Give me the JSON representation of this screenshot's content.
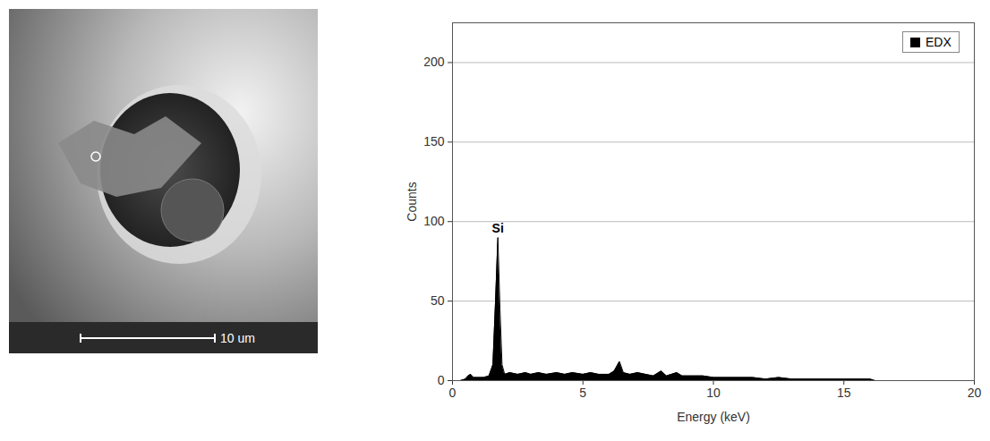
{
  "image": {
    "scale_bar": "10 um"
  },
  "chart_data": {
    "type": "area",
    "x_label": "Energy (keV)",
    "y_label": "Counts",
    "x": [
      0.0,
      0.3,
      0.5,
      0.6,
      0.7,
      0.8,
      0.9,
      1.0,
      1.2,
      1.4,
      1.55,
      1.65,
      1.74,
      1.82,
      1.9,
      2.0,
      2.2,
      2.5,
      2.8,
      3.0,
      3.3,
      3.6,
      4.0,
      4.3,
      4.6,
      5.0,
      5.3,
      5.6,
      6.0,
      6.2,
      6.4,
      6.55,
      6.8,
      7.1,
      7.4,
      7.7,
      8.0,
      8.2,
      8.6,
      8.8,
      9.2,
      9.6,
      10.0,
      10.5,
      11.0,
      11.5,
      12.0,
      12.5,
      13.0,
      13.5,
      14.0,
      14.5,
      15.0,
      15.5,
      16.0,
      16.2
    ],
    "series": [
      {
        "name": "EDX",
        "color": "#000000",
        "values": [
          0,
          0,
          1,
          3,
          4,
          2,
          2,
          2,
          2,
          3,
          10,
          50,
          90,
          45,
          10,
          4,
          5,
          4,
          5,
          4,
          5,
          4,
          5,
          4,
          5,
          4,
          5,
          4,
          4,
          6,
          12,
          5,
          4,
          5,
          4,
          3,
          6,
          3,
          5,
          3,
          3,
          3,
          2,
          2,
          2,
          2,
          1,
          2,
          1,
          1,
          1,
          1,
          1,
          1,
          1,
          0
        ]
      }
    ],
    "annotations": [
      {
        "text": "Si",
        "x": 1.74,
        "y": 90
      }
    ],
    "xlim": [
      0,
      20
    ],
    "xticks": [
      0,
      5,
      10,
      15,
      20
    ],
    "ylim": [
      0,
      225
    ],
    "yticks": [
      0,
      50,
      100,
      150,
      200
    ],
    "grid": true,
    "legend": "top-right"
  }
}
